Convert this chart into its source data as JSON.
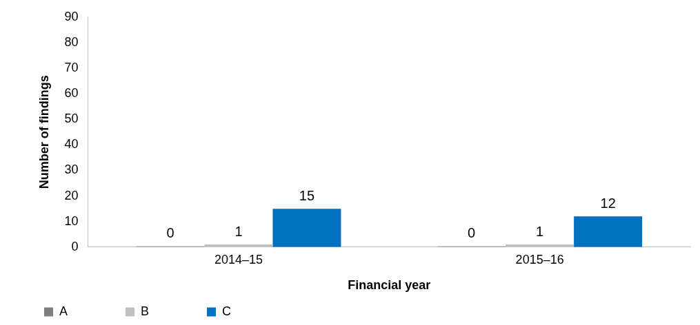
{
  "chart_data": {
    "type": "bar",
    "xlabel": "Financial year",
    "ylabel": "Number of findings",
    "categories": [
      "2014–15",
      "2015–16"
    ],
    "series": [
      {
        "name": "A",
        "color": "#7f7f7f",
        "values": [
          0,
          0
        ]
      },
      {
        "name": "B",
        "color": "#c0c0c0",
        "values": [
          1,
          1
        ]
      },
      {
        "name": "C",
        "color": "#0070c0",
        "values": [
          15,
          12
        ]
      }
    ],
    "ylim": [
      0,
      90
    ],
    "yticks": [
      0,
      10,
      20,
      30,
      40,
      50,
      60,
      70,
      80,
      90
    ],
    "data_labels": true,
    "legend": "bottom left",
    "grid": false
  }
}
